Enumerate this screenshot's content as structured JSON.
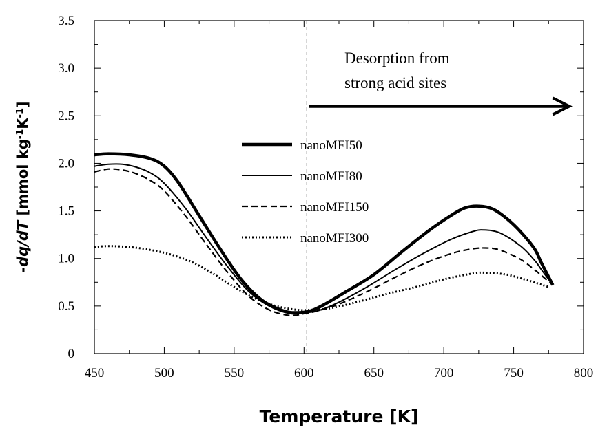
{
  "chart_data": {
    "type": "line",
    "xlabel": "Temperature [K]",
    "ylabel": {
      "prefix": "-",
      "italic": "dq/dT",
      "unit_open": " [mmol kg",
      "sup1": "-1",
      "unit_mid": "K",
      "sup2": "-1",
      "unit_close": "]"
    },
    "xlim": [
      450,
      800
    ],
    "ylim": [
      0,
      3.5
    ],
    "xticks": [
      450,
      500,
      550,
      600,
      650,
      700,
      750,
      800
    ],
    "yticks": [
      "0",
      "0.5",
      "1.0",
      "1.5",
      "2.0",
      "2.5",
      "3.0",
      "3.5"
    ],
    "grid": false,
    "legend_position": "center",
    "annotation": {
      "lines": [
        "Desorption from",
        "strong acid sites"
      ],
      "arrow_from_x": 602,
      "arrow_to_x": 780,
      "arrow_y": 2.6
    },
    "vertical_line_x": 602,
    "series": [
      {
        "name": "nanoMFI50",
        "style": "thick-solid",
        "x": [
          450,
          460,
          475,
          490,
          500,
          510,
          525,
          540,
          555,
          570,
          585,
          595,
          605,
          615,
          630,
          650,
          670,
          690,
          705,
          715,
          725,
          735,
          745,
          755,
          765,
          770,
          778
        ],
        "y": [
          2.09,
          2.1,
          2.09,
          2.05,
          1.97,
          1.8,
          1.45,
          1.1,
          0.78,
          0.56,
          0.45,
          0.43,
          0.45,
          0.52,
          0.65,
          0.83,
          1.07,
          1.3,
          1.45,
          1.53,
          1.55,
          1.52,
          1.42,
          1.28,
          1.1,
          0.95,
          0.72
        ]
      },
      {
        "name": "nanoMFI80",
        "style": "solid",
        "x": [
          450,
          460,
          470,
          480,
          490,
          500,
          515,
          530,
          545,
          560,
          575,
          590,
          600,
          610,
          625,
          645,
          665,
          685,
          705,
          720,
          728,
          740,
          755,
          765,
          770,
          778
        ],
        "y": [
          1.97,
          1.99,
          1.99,
          1.96,
          1.9,
          1.79,
          1.53,
          1.22,
          0.92,
          0.66,
          0.5,
          0.42,
          0.43,
          0.45,
          0.54,
          0.7,
          0.88,
          1.05,
          1.2,
          1.28,
          1.3,
          1.27,
          1.13,
          0.98,
          0.88,
          0.72
        ]
      },
      {
        "name": "nanoMFI150",
        "style": "dashed",
        "x": [
          450,
          460,
          470,
          480,
          490,
          500,
          515,
          530,
          545,
          560,
          575,
          590,
          600,
          610,
          625,
          645,
          665,
          685,
          705,
          720,
          730,
          740,
          755,
          765,
          770,
          778
        ],
        "y": [
          1.91,
          1.94,
          1.93,
          1.89,
          1.82,
          1.71,
          1.45,
          1.15,
          0.86,
          0.61,
          0.46,
          0.4,
          0.42,
          0.45,
          0.52,
          0.65,
          0.8,
          0.94,
          1.05,
          1.1,
          1.11,
          1.09,
          0.99,
          0.88,
          0.82,
          0.72
        ]
      },
      {
        "name": "nanoMFI300",
        "style": "dotted",
        "x": [
          450,
          460,
          475,
          490,
          505,
          520,
          535,
          550,
          565,
          580,
          595,
          605,
          620,
          640,
          660,
          680,
          700,
          720,
          730,
          745,
          760,
          775
        ],
        "y": [
          1.12,
          1.13,
          1.12,
          1.09,
          1.04,
          0.96,
          0.84,
          0.7,
          0.58,
          0.5,
          0.46,
          0.46,
          0.48,
          0.55,
          0.63,
          0.7,
          0.78,
          0.84,
          0.85,
          0.83,
          0.77,
          0.7
        ]
      }
    ]
  }
}
